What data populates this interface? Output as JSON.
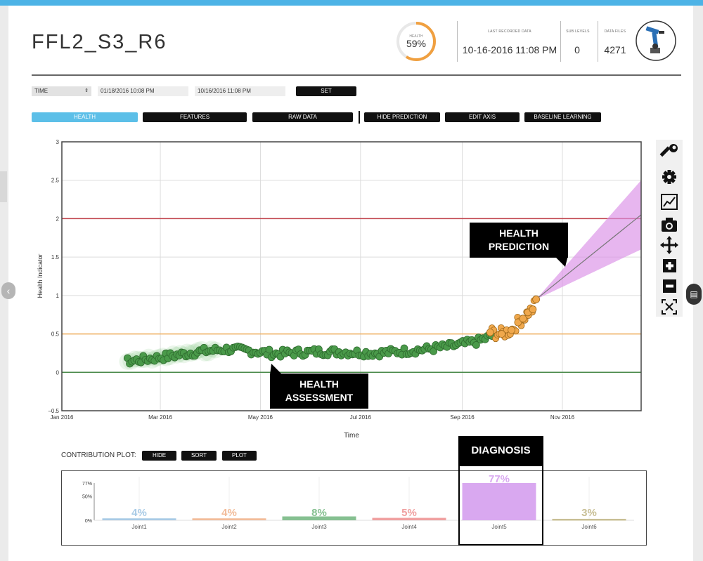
{
  "header": {
    "title": "FFL2_S3_R6",
    "health_label": "HEALTH",
    "health_value": "59%",
    "health_fraction": 0.59,
    "last_recorded_label": "LAST RECORDED DATA",
    "last_recorded_value": "10-16-2016 11:08 PM",
    "sub_levels_label": "SUB LEVELS",
    "sub_levels_value": "0",
    "data_files_label": "DATA FILES",
    "data_files_value": "4271"
  },
  "filter": {
    "select_value": "TIME",
    "start_date": "01/18/2016 10:08 PM",
    "end_date": "10/16/2016 11:08 PM",
    "set_label": "SET"
  },
  "tabs": {
    "health": "HEALTH",
    "features": "FEATURES",
    "raw_data": "RAW DATA",
    "hide_prediction": "HIDE PREDICTION",
    "edit_axis": "EDIT AXIS",
    "baseline_learning": "BASELINE LEARNING"
  },
  "annotations": {
    "health_prediction_1": "HEALTH",
    "health_prediction_2": "PREDICTION",
    "health_assessment_1": "HEALTH",
    "health_assessment_2": "ASSESSMENT",
    "diagnosis": "DIAGNOSIS"
  },
  "contribution": {
    "label": "CONTRIBUTION PLOT:",
    "hide": "HIDE",
    "sort": "SORT",
    "plot": "PLOT"
  },
  "icons": [
    "wrench-icon",
    "gear-icon",
    "chart-icon",
    "camera-icon",
    "move-icon",
    "zoom-in-icon",
    "zoom-out-icon",
    "reset-axes-icon"
  ],
  "colors": {
    "accent": "#5cbfe8",
    "gauge": "#f0a040",
    "assessment": "#4a9a4a",
    "prediction": "#f0a84c",
    "band": "#da8fe6",
    "failure": "#c0404a",
    "warning": "#f0b060",
    "baseline": "#4a8a4a"
  },
  "chart_data": [
    {
      "type": "scatter",
      "xlabel": "Time",
      "ylabel": "Health Indicator",
      "x_ticks": [
        "Jan 2016",
        "Mar 2016",
        "May 2016",
        "Jul 2016",
        "Sep 2016",
        "Nov 2016"
      ],
      "y_ticks": [
        "3",
        "2.5",
        "2",
        "1.5",
        "1",
        "0.5",
        "0",
        "−0.5"
      ],
      "ylim": [
        -0.5,
        3
      ],
      "grid": true,
      "thresholds": [
        {
          "value": 2,
          "color": "#c0404a"
        },
        {
          "value": 0.5,
          "color": "#f0b060"
        },
        {
          "value": 0,
          "color": "#4a8a4a"
        }
      ],
      "series": [
        {
          "x": [
            "2016-02-10",
            "2016-02-25",
            "2016-03-10",
            "2016-03-25",
            "2016-04-10",
            "2016-04-25",
            "2016-05-10",
            "2016-05-25",
            "2016-06-10",
            "2016-06-25",
            "2016-07-10",
            "2016-07-25",
            "2016-08-10",
            "2016-08-25",
            "2016-09-10",
            "2016-09-20"
          ],
          "y": [
            0.14,
            0.18,
            0.22,
            0.27,
            0.3,
            0.28,
            0.24,
            0.26,
            0.27,
            0.26,
            0.25,
            0.27,
            0.3,
            0.34,
            0.4,
            0.48
          ]
        },
        {
          "x": [
            "2016-09-18",
            "2016-09-25",
            "2016-10-01",
            "2016-10-05",
            "2016-10-08",
            "2016-10-11",
            "2016-10-14",
            "2016-10-16"
          ],
          "y": [
            0.52,
            0.5,
            0.55,
            0.65,
            0.7,
            0.78,
            0.82,
            0.95
          ]
        },
        {
          "x": [
            "2016-10-16",
            "2016-12-01"
          ],
          "y": [
            0.95,
            2.05
          ]
        }
      ]
    },
    {
      "type": "bar",
      "categories": [
        "Joint1",
        "Joint2",
        "Joint3",
        "Joint4",
        "Joint5",
        "Joint6"
      ],
      "values": [
        4,
        4,
        8,
        5,
        77,
        3
      ],
      "value_labels": [
        "4%",
        "4%",
        "8%",
        "5%",
        "77%",
        "3%"
      ],
      "colors": [
        "#a9cbe6",
        "#f2bc9a",
        "#86c091",
        "#f0a0a0",
        "#d9a8f0",
        "#c8bf95"
      ],
      "y_ticks": [
        "77%",
        "50%",
        "0%"
      ],
      "ylim": [
        0,
        77
      ]
    }
  ]
}
